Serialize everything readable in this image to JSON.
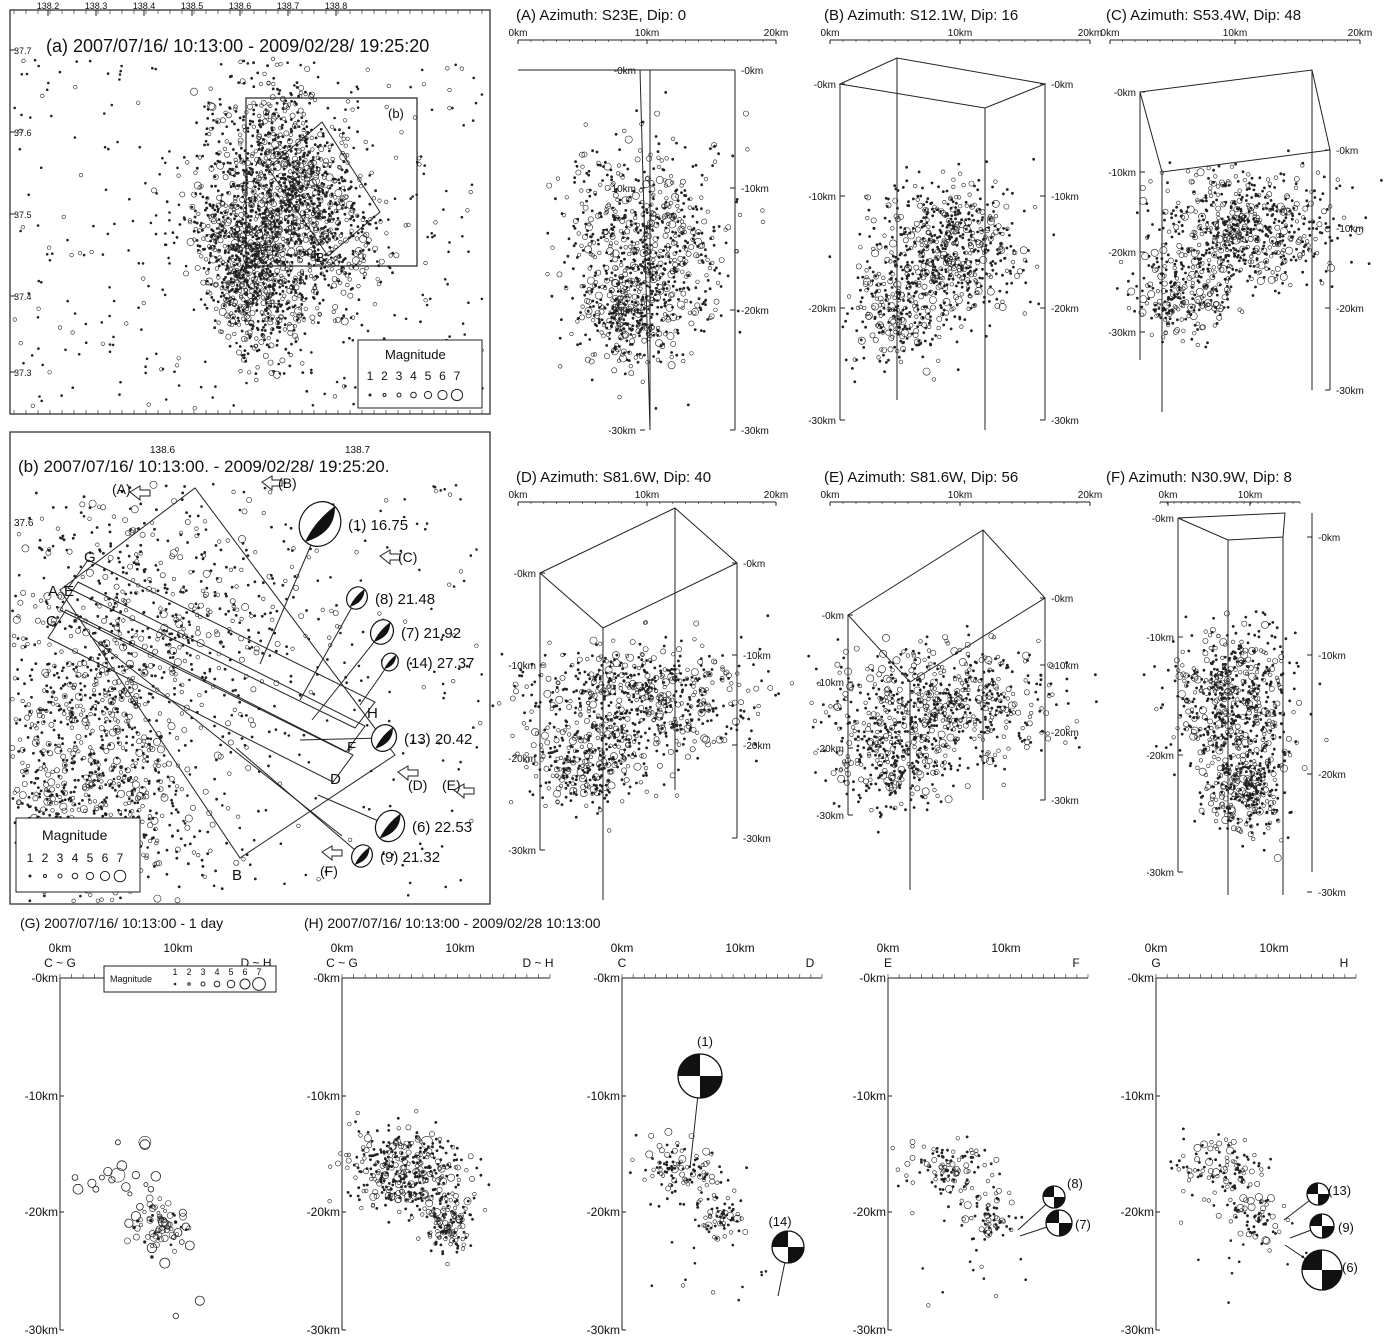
{
  "figure": {
    "panels": [
      {
        "id": "map-a",
        "title": "(a) 2007/07/16/ 10:13:00 - 2009/02/28/ 19:25:20",
        "lon_ticks": [
          "138.2",
          "138.3",
          "138.4",
          "138.5",
          "138.6",
          "138.7",
          "138.8"
        ],
        "lat_ticks": [
          "37.7",
          "37.6",
          "37.5",
          "37.4",
          "37.3"
        ],
        "labels": {
          "A": "A",
          "B": "B",
          "box": "(b)"
        },
        "legend": {
          "title": "Magnitude",
          "values": [
            "1",
            "2",
            "3",
            "4",
            "5",
            "6",
            "7"
          ]
        }
      },
      {
        "id": "map-b",
        "title": "(b) 2007/07/16/ 10:13:00. - 2009/02/28/ 19:25:20.",
        "lon_ticks": [
          "138.6",
          "138.7"
        ],
        "lat_ticks": [
          "37.6"
        ],
        "arrows": [
          "(A)",
          "(B)",
          "(C)",
          "(D)",
          "(E)",
          "(F)"
        ],
        "line_labels": [
          "G",
          "A",
          "E",
          "C",
          "H",
          "F",
          "D",
          "B"
        ],
        "mechanisms": [
          {
            "id": "(1)",
            "depth": "16.75"
          },
          {
            "id": "(8)",
            "depth": "21.48"
          },
          {
            "id": "(7)",
            "depth": "21.92"
          },
          {
            "id": "(14)",
            "depth": "27.37"
          },
          {
            "id": "(13)",
            "depth": "20.42"
          },
          {
            "id": "(6)",
            "depth": "22.53"
          },
          {
            "id": "(9)",
            "depth": "21.32"
          }
        ],
        "legend": {
          "title": "Magnitude",
          "values": [
            "1",
            "2",
            "3",
            "4",
            "5",
            "6",
            "7"
          ]
        }
      },
      {
        "id": "3d-A",
        "title": "(A) Azimuth: S23E, Dip: 0",
        "x_ticks": [
          "0km",
          "10km",
          "20km"
        ]
      },
      {
        "id": "3d-B",
        "title": "(B) Azimuth: S12.1W, Dip: 16",
        "x_ticks": [
          "0km",
          "10km",
          "20km"
        ]
      },
      {
        "id": "3d-C",
        "title": "(C) Azimuth: S53.4W, Dip: 48",
        "x_ticks": [
          "0km",
          "10km",
          "20km"
        ]
      },
      {
        "id": "3d-D",
        "title": "(D) Azimuth: S81.6W, Dip: 40",
        "x_ticks": [
          "0km",
          "10km",
          "20km"
        ]
      },
      {
        "id": "3d-E",
        "title": "(E) Azimuth: S81.6W, Dip: 56",
        "x_ticks": [
          "0km",
          "10km",
          "20km"
        ]
      },
      {
        "id": "3d-F",
        "title": "(F) Azimuth: N30.9W, Dip: 8",
        "x_ticks": [
          "0km",
          "10km"
        ]
      },
      {
        "id": "sec-G",
        "title": "(G) 2007/07/16/ 10:13:00 -  1 day",
        "x_ticks": [
          "0km",
          "10km"
        ],
        "ends": [
          "C ~ G",
          "D ~ H"
        ],
        "depth_ticks": [
          "-0km",
          "-10km",
          "-20km",
          "-30km"
        ],
        "legend": {
          "title": "Magnitude",
          "values": [
            "1",
            "2",
            "3",
            "4",
            "5",
            "6",
            "7"
          ]
        }
      },
      {
        "id": "sec-H1",
        "title": "(H) 2007/07/16/ 10:13:00 -  2009/02/28 10:13:00",
        "x_ticks": [
          "0km",
          "10km"
        ],
        "ends": [
          "C ~ G",
          "D ~ H"
        ],
        "depth_ticks": [
          "-0km",
          "-10km",
          "-20km",
          "-30km"
        ]
      },
      {
        "id": "sec-CD",
        "x_ticks": [
          "0km",
          "10km"
        ],
        "ends": [
          "C",
          "D"
        ],
        "depth_ticks": [
          "-0km",
          "-10km",
          "-20km",
          "-30km"
        ],
        "mechanisms": [
          "(1)",
          "(14)"
        ]
      },
      {
        "id": "sec-EF",
        "x_ticks": [
          "0km",
          "10km"
        ],
        "ends": [
          "E",
          "F"
        ],
        "depth_ticks": [
          "-0km",
          "-10km",
          "-20km",
          "-30km"
        ],
        "mechanisms": [
          "(8)",
          "(7)"
        ]
      },
      {
        "id": "sec-GH",
        "x_ticks": [
          "0km",
          "10km"
        ],
        "ends": [
          "G",
          "H"
        ],
        "depth_ticks": [
          "-0km",
          "-10km",
          "-20km",
          "-30km"
        ],
        "mechanisms": [
          "(13)",
          "(9)",
          "(6)"
        ]
      }
    ]
  },
  "chart_data": [
    {
      "type": "scatter",
      "title": "(a) 2007/07/16/ 10:13:00 - 2009/02/28/ 19:25:20",
      "x_ticks": [
        "138.2",
        "138.3",
        "138.4",
        "138.5",
        "138.6",
        "138.7",
        "138.8"
      ],
      "y_ticks": [
        "37.7",
        "37.6",
        "37.5",
        "37.4",
        "37.3"
      ],
      "xlim": [
        138.15,
        138.85
      ],
      "ylim": [
        37.25,
        37.72
      ],
      "size_legend": "Magnitude 1-7",
      "clusters": [
        {
          "lon": 138.58,
          "lat": 37.52,
          "spread_lon": 0.05,
          "spread_lat": 0.05,
          "count": 900
        },
        {
          "lon": 138.5,
          "lat": 37.43,
          "spread_lon": 0.05,
          "spread_lat": 0.04,
          "count": 700
        }
      ]
    },
    {
      "type": "scatter",
      "title": "(b) 2007/07/16/ 10:13:00. - 2009/02/28/ 19:25:20.",
      "x_ticks": [
        "138.6",
        "138.7"
      ],
      "y_ticks": [
        "37.6"
      ],
      "mechanism_depths_km": {
        "(1)": 16.75,
        "(8)": 21.48,
        "(7)": 21.92,
        "(14)": 27.37,
        "(13)": 20.42,
        "(6)": 22.53,
        "(9)": 21.32
      }
    },
    {
      "type": "scatter",
      "title": "(G) 2007/07/16/ 10:13:00 -  1 day",
      "xlabel": "",
      "ylabel": "",
      "x_ticks": [
        "0km",
        "10km"
      ],
      "y_ticks": [
        "-0km",
        "-10km",
        "-20km",
        "-30km"
      ],
      "xlim": [
        0,
        25
      ],
      "ylim": [
        -30,
        0
      ],
      "points_km": [
        [
          1.5,
          -17
        ],
        [
          1.8,
          -18
        ],
        [
          3.2,
          -17.5
        ],
        [
          3.6,
          -18
        ],
        [
          4.2,
          -17
        ],
        [
          4.8,
          -16.5
        ],
        [
          5.2,
          -17.2
        ],
        [
          5.8,
          -14
        ],
        [
          6.2,
          -16
        ],
        [
          6.6,
          -17.8
        ],
        [
          7,
          -18.4
        ],
        [
          7.6,
          -16.8
        ],
        [
          8,
          -19.5
        ],
        [
          8.5,
          -14.2
        ],
        [
          8.6,
          -17.6
        ],
        [
          9.1,
          -18
        ],
        [
          9.6,
          -16.9
        ],
        [
          10,
          -20.3
        ],
        [
          10.3,
          -20.8
        ],
        [
          10.7,
          -21.5
        ],
        [
          11,
          -21
        ],
        [
          11.4,
          -22.1
        ],
        [
          11.8,
          -21.7
        ],
        [
          12.2,
          -22.5
        ],
        [
          12.6,
          -21.2
        ],
        [
          13,
          -22.8
        ],
        [
          9.2,
          -23
        ],
        [
          10.5,
          -24.3
        ],
        [
          11.6,
          -28.8
        ],
        [
          14,
          -27.5
        ],
        [
          7.6,
          -20.3
        ],
        [
          6.9,
          -20.9
        ],
        [
          9.8,
          -21.5
        ],
        [
          12.3,
          -20
        ]
      ]
    },
    {
      "type": "scatter",
      "title": "(H) 2007/07/16/ 10:13:00 -  2009/02/28 10:13:00",
      "x_ticks": [
        "0km",
        "10km"
      ],
      "y_ticks": [
        "-0km",
        "-10km",
        "-20km",
        "-30km"
      ],
      "xlim": [
        0,
        25
      ],
      "ylim": [
        -30,
        0
      ],
      "clusters": [
        {
          "x": 7,
          "y": -16.5,
          "spread_x": 3.5,
          "spread_y": 2.5,
          "count": 380
        },
        {
          "x": 11,
          "y": -21,
          "spread_x": 1.6,
          "spread_y": 1.6,
          "count": 130
        }
      ]
    },
    {
      "type": "scatter",
      "title": "C - D",
      "xlim": [
        0,
        25
      ],
      "ylim": [
        -30,
        0
      ],
      "mechanisms": [
        {
          "id": "(1)",
          "x_km": 7.2,
          "depth_km": 17
        },
        {
          "id": "(14)",
          "x_km": 19.5,
          "depth_km": 27.37
        }
      ]
    },
    {
      "type": "scatter",
      "title": "E - F",
      "xlim": [
        0,
        25
      ],
      "ylim": [
        -30,
        0
      ],
      "mechanisms": [
        {
          "id": "(8)",
          "x_km": 17.5,
          "depth_km": 21.48
        },
        {
          "id": "(7)",
          "x_km": 17.3,
          "depth_km": 21.92
        }
      ]
    },
    {
      "type": "scatter",
      "title": "G - H",
      "xlim": [
        0,
        25
      ],
      "ylim": [
        -30,
        0
      ],
      "mechanisms": [
        {
          "id": "(13)",
          "x_km": 13.5,
          "depth_km": 20.42
        },
        {
          "id": "(9)",
          "x_km": 13.2,
          "depth_km": 21.32
        },
        {
          "id": "(6)",
          "x_km": 14,
          "depth_km": 22.53
        }
      ]
    }
  ]
}
